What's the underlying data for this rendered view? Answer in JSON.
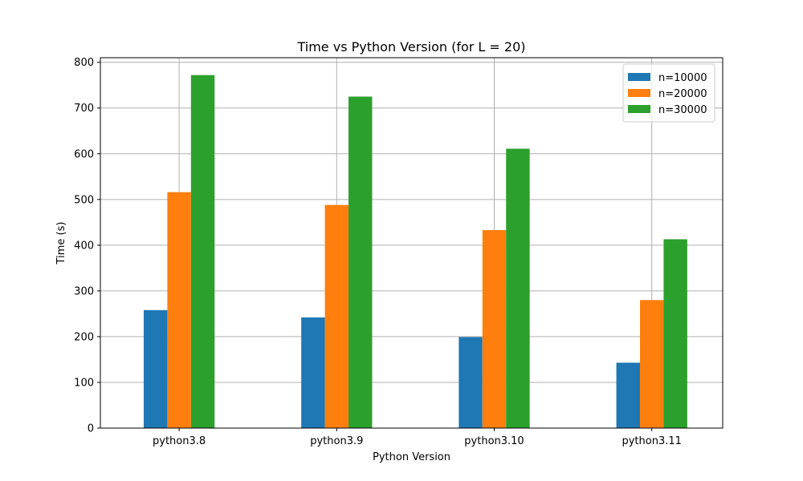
{
  "chart_data": {
    "type": "bar",
    "title": "Time vs Python Version (for L = 20)",
    "xlabel": "Python Version",
    "ylabel": "Time (s)",
    "categories": [
      "python3.8",
      "python3.9",
      "python3.10",
      "python3.11"
    ],
    "series": [
      {
        "name": "n=10000",
        "color": "#1f77b4",
        "values": [
          258,
          242,
          199,
          143
        ]
      },
      {
        "name": "n=20000",
        "color": "#ff7f0e",
        "values": [
          516,
          488,
          433,
          280
        ]
      },
      {
        "name": "n=30000",
        "color": "#2ca02c",
        "values": [
          772,
          725,
          611,
          413
        ]
      }
    ],
    "ylim": [
      0,
      810
    ],
    "yticks": [
      0,
      100,
      200,
      300,
      400,
      500,
      600,
      700,
      800
    ],
    "ytick_labels": [
      "0",
      "100",
      "200",
      "300",
      "400",
      "500",
      "600",
      "700",
      "800"
    ],
    "grid": true,
    "legend_position": "top-right"
  }
}
